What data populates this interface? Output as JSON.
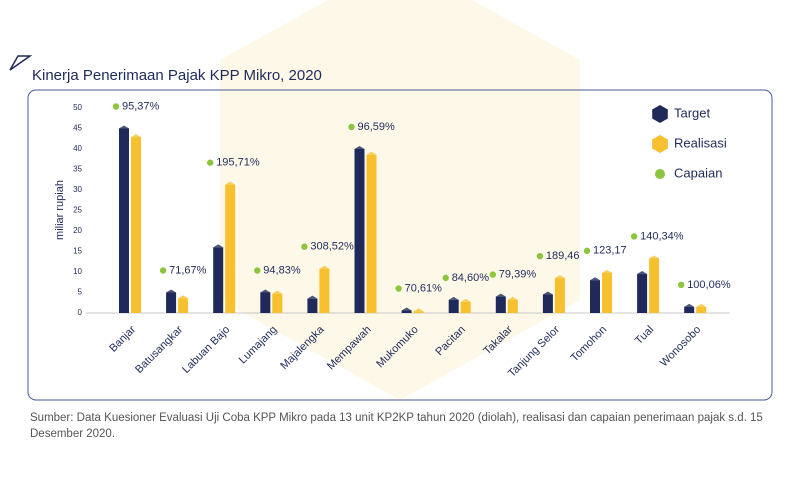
{
  "chart_data": {
    "type": "bar",
    "title": "Kinerja Penerimaan Pajak KPP Mikro, 2020",
    "y_label": "miliar rupiah",
    "categories": [
      "Banjar",
      "Batusangkar",
      "Labuan Bajo",
      "Lumajang",
      "Majalengka",
      "Mempawah",
      "Mukomuko",
      "Pacitan",
      "Takalar",
      "Tanjung Selor",
      "Tomohon",
      "Tual",
      "Wonosobo"
    ],
    "series": [
      {
        "name": "Target",
        "color": "#1f2a5a",
        "values": [
          45,
          5,
          16,
          5,
          3.5,
          40,
          0.6,
          3.2,
          4,
          4.5,
          8,
          9.5,
          1.5
        ]
      },
      {
        "name": "Realisasi",
        "color": "#f6c02f",
        "values": [
          42.9,
          3.6,
          31.3,
          4.7,
          10.8,
          38.6,
          0.4,
          2.7,
          3.2,
          8.5,
          9.8,
          13.3,
          1.5
        ]
      },
      {
        "name": "Capaian",
        "color": "#8cc63e",
        "values": [
          95.37,
          71.67,
          195.71,
          94.83,
          308.52,
          96.59,
          70.61,
          84.6,
          79.39,
          189.46,
          123.17,
          140.34,
          100.06
        ],
        "value_labels": [
          "95,37%",
          "71,67%",
          "195,71%",
          "94,83%",
          "308,52%",
          "96,59%",
          "70,61%",
          "84,60%",
          "79,39%",
          "189,46",
          "123,17",
          "140,34%",
          "100,06%"
        ]
      }
    ],
    "ylim": [
      0,
      50
    ],
    "yticks": [
      0,
      5,
      10,
      15,
      20,
      25,
      30,
      35,
      40,
      45,
      50
    ],
    "grid": false,
    "legend": "top-right",
    "source": "Sumber: Data Kuesioner Evaluasi Uji Coba KPP Mikro pada 13 unit KP2KP tahun 2020 (diolah), realisasi dan capaian penerimaan pajak s.d. 15 Desember 2020."
  }
}
